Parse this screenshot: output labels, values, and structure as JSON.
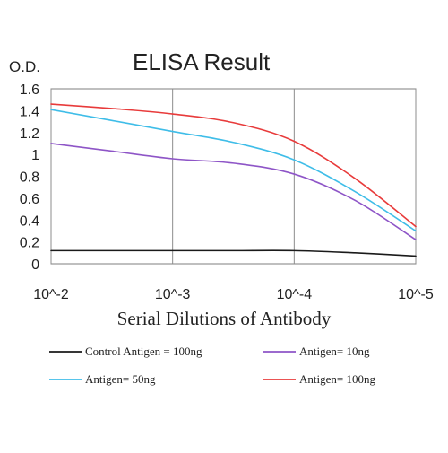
{
  "chart_data": {
    "type": "line",
    "title": "ELISA Result",
    "ylabel": "O.D.",
    "xlabel": "Serial Dilutions of Antibody",
    "categories": [
      "10^-2",
      "10^-3",
      "10^-4",
      "10^-5"
    ],
    "x": [
      -2,
      -2.5,
      -3,
      -3.5,
      -4,
      -4.5,
      -5
    ],
    "ylim": [
      0,
      1.6
    ],
    "yticks": [
      "1.6",
      "1.4",
      "1.2",
      "1",
      "0.8",
      "0.6",
      "0.4",
      "0.2",
      "0"
    ],
    "grid": "vertical",
    "legend_position": "bottom",
    "series": [
      {
        "name": "Control Antigen = 100ng",
        "color": "#1a1a1a",
        "values": [
          0.12,
          0.12,
          0.12,
          0.12,
          0.12,
          0.1,
          0.07
        ]
      },
      {
        "name": "Antigen= 10ng",
        "color": "#8e55c7",
        "values": [
          1.1,
          1.03,
          0.96,
          0.92,
          0.82,
          0.58,
          0.22
        ]
      },
      {
        "name": "Antigen= 50ng",
        "color": "#3fbde8",
        "values": [
          1.41,
          1.31,
          1.21,
          1.11,
          0.95,
          0.66,
          0.3
        ]
      },
      {
        "name": "Antigen= 100ng",
        "color": "#e83b3b",
        "values": [
          1.46,
          1.42,
          1.37,
          1.29,
          1.12,
          0.78,
          0.34
        ]
      }
    ]
  }
}
